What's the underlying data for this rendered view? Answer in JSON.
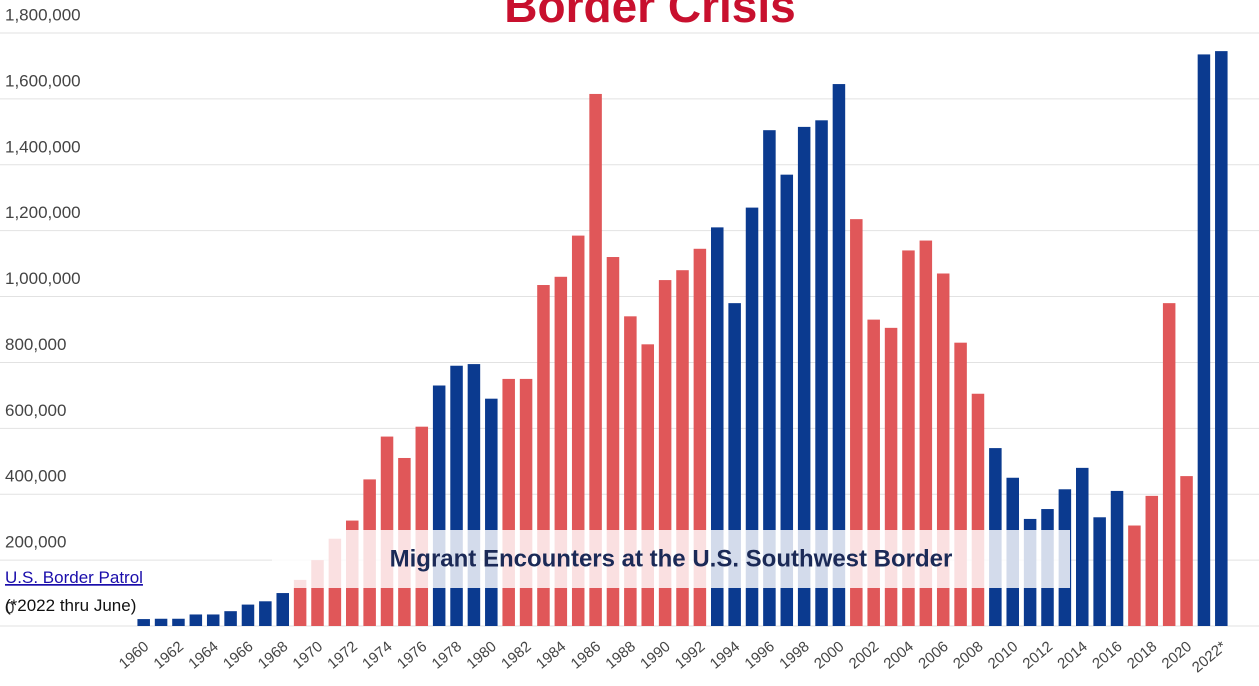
{
  "chart_data": {
    "type": "bar",
    "title": "Border Crisis",
    "subtitle": "Migrant Encounters at the U.S. Southwest Border",
    "source": "U.S. Border Patrol",
    "note": "(*2022 thru June)",
    "categories": [
      "1960",
      null,
      "1962",
      null,
      "1964",
      null,
      "1966",
      null,
      "1968",
      null,
      "1970",
      null,
      "1972",
      null,
      "1974",
      null,
      "1976",
      null,
      "1978",
      null,
      "1980",
      null,
      "1982",
      null,
      "1984",
      null,
      "1986",
      null,
      "1988",
      null,
      "1990",
      null,
      "1992",
      null,
      "1994",
      null,
      "1996",
      null,
      "1998",
      null,
      "2000",
      null,
      "2002",
      null,
      "2004",
      null,
      "2006",
      null,
      "2008",
      null,
      "2010",
      null,
      "2012",
      null,
      "2014",
      null,
      "2016",
      null,
      "2018",
      null,
      "2020",
      null,
      "2022*"
    ],
    "values": [
      21000,
      22000,
      22000,
      35000,
      35000,
      45000,
      65000,
      75000,
      100000,
      140000,
      200000,
      265000,
      320000,
      445000,
      575000,
      510000,
      605000,
      730000,
      790000,
      795000,
      690000,
      750000,
      750000,
      1035000,
      1060000,
      1185000,
      1615000,
      1120000,
      940000,
      855000,
      1050000,
      1080000,
      1145000,
      1210000,
      980000,
      1270000,
      1505000,
      1370000,
      1515000,
      1535000,
      1645000,
      1235000,
      930000,
      905000,
      1140000,
      1170000,
      1070000,
      860000,
      705000,
      540000,
      450000,
      325000,
      355000,
      415000,
      480000,
      330000,
      410000,
      305000,
      395000,
      980000,
      455000,
      1735000,
      1745000
    ],
    "colors": [
      "#0b3a8f",
      "#0b3a8f",
      "#0b3a8f",
      "#0b3a8f",
      "#0b3a8f",
      "#0b3a8f",
      "#0b3a8f",
      "#0b3a8f",
      "#0b3a8f",
      "#e05759",
      "#e05759",
      "#e05759",
      "#e05759",
      "#e05759",
      "#e05759",
      "#e05759",
      "#e05759",
      "#0b3a8f",
      "#0b3a8f",
      "#0b3a8f",
      "#0b3a8f",
      "#e05759",
      "#e05759",
      "#e05759",
      "#e05759",
      "#e05759",
      "#e05759",
      "#e05759",
      "#e05759",
      "#e05759",
      "#e05759",
      "#e05759",
      "#e05759",
      "#0b3a8f",
      "#0b3a8f",
      "#0b3a8f",
      "#0b3a8f",
      "#0b3a8f",
      "#0b3a8f",
      "#0b3a8f",
      "#0b3a8f",
      "#e05759",
      "#e05759",
      "#e05759",
      "#e05759",
      "#e05759",
      "#e05759",
      "#e05759",
      "#e05759",
      "#0b3a8f",
      "#0b3a8f",
      "#0b3a8f",
      "#0b3a8f",
      "#0b3a8f",
      "#0b3a8f",
      "#0b3a8f",
      "#0b3a8f",
      "#e05759",
      "#e05759",
      "#e05759",
      "#e05759",
      "#0b3a8f",
      "#0b3a8f"
    ],
    "ylim": [
      0,
      1800000
    ],
    "yticks": [
      0,
      {
        "value": 200000,
        "label": "200,000"
      },
      {
        "value": 400000,
        "label": "400,000"
      },
      {
        "value": 600000,
        "label": "600,000"
      },
      {
        "value": 800000,
        "label": "800,000"
      },
      {
        "value": 1000000,
        "label": "1,000,000"
      },
      {
        "value": 1200000,
        "label": "1,200,000"
      },
      {
        "value": 1400000,
        "label": "1,400,000"
      },
      {
        "value": 1600000,
        "label": "1,600,000"
      },
      {
        "value": 1800000,
        "label": "1,800,000"
      }
    ],
    "grid": true
  }
}
